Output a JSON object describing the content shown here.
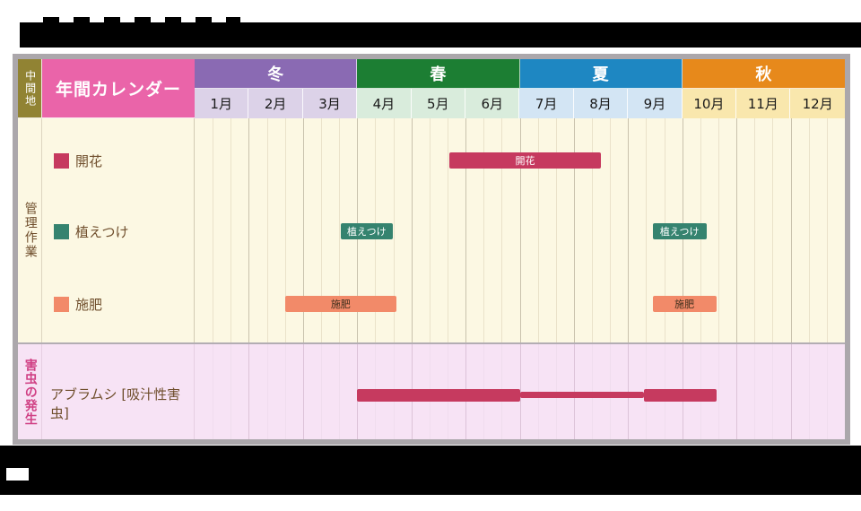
{
  "table": {
    "region_label": "中間地",
    "calendar_title": "年間カレンダー",
    "sections": {
      "tasks": {
        "label": "管理作業"
      },
      "pests": {
        "label": "害虫の発生",
        "row_label": "アブラムシ [吸汁性害虫]"
      }
    },
    "seasons": [
      {
        "label": "冬",
        "color": "#8a6ab3",
        "month_bg": "#dcd2e8",
        "months": [
          "1月",
          "2月",
          "3月"
        ]
      },
      {
        "label": "春",
        "color": "#1c7e33",
        "month_bg": "#d9ecdc",
        "months": [
          "4月",
          "5月",
          "6月"
        ]
      },
      {
        "label": "夏",
        "color": "#1e87c2",
        "month_bg": "#d3e5f4",
        "months": [
          "7月",
          "8月",
          "9月"
        ]
      },
      {
        "label": "秋",
        "color": "#e7891b",
        "month_bg": "#f9e7ad",
        "months": [
          "10月",
          "11月",
          "12月"
        ]
      }
    ],
    "legend": [
      {
        "key": "flowering",
        "label": "開花",
        "color": "#c63a5f"
      },
      {
        "key": "planting",
        "label": "植えつけ",
        "color": "#35836f"
      },
      {
        "key": "fertilizing",
        "label": "施肥",
        "color": "#f28a69"
      }
    ]
  },
  "chart_data": {
    "type": "bar",
    "subtype": "gantt-annual-calendar",
    "title": "年間カレンダー",
    "region": "中間地",
    "x_axis": {
      "months": [
        "1月",
        "2月",
        "3月",
        "4月",
        "5月",
        "6月",
        "7月",
        "8月",
        "9月",
        "10月",
        "11月",
        "12月"
      ],
      "range_months": [
        1,
        13
      ],
      "season_groups": [
        {
          "season": "冬",
          "months": [
            "1月",
            "2月",
            "3月"
          ]
        },
        {
          "season": "春",
          "months": [
            "4月",
            "5月",
            "6月"
          ]
        },
        {
          "season": "夏",
          "months": [
            "7月",
            "8月",
            "9月"
          ]
        },
        {
          "season": "秋",
          "months": [
            "10月",
            "11月",
            "12月"
          ]
        }
      ]
    },
    "series": [
      {
        "name": "開花",
        "row": "flowering",
        "color": "#c63a5f",
        "label_color": "#ffffff",
        "bars": [
          {
            "start_month": 5.7,
            "end_month": 8.5,
            "label": "開花"
          }
        ]
      },
      {
        "name": "植えつけ",
        "row": "planting",
        "color": "#35836f",
        "label_color": "#ffffff",
        "bars": [
          {
            "start_month": 3.7,
            "end_month": 4.65,
            "label": "植えつけ"
          },
          {
            "start_month": 9.45,
            "end_month": 10.45,
            "label": "植えつけ"
          }
        ]
      },
      {
        "name": "施肥",
        "row": "fertilizing",
        "color": "#f28a69",
        "label_color": "#3a2c1a",
        "bars": [
          {
            "start_month": 2.67,
            "end_month": 4.72,
            "label": "施肥"
          },
          {
            "start_month": 9.45,
            "end_month": 10.63,
            "label": "施肥"
          }
        ]
      },
      {
        "name": "アブラムシ [吸汁性害虫]",
        "row": "pest",
        "color": "#c63a5f",
        "label_color": "#ffffff",
        "bars": [
          {
            "start_month": 4.0,
            "end_month": 7.0,
            "level": "high"
          },
          {
            "start_month": 7.0,
            "end_month": 9.3,
            "level": "low"
          },
          {
            "start_month": 9.3,
            "end_month": 10.63,
            "level": "high"
          }
        ]
      }
    ]
  }
}
